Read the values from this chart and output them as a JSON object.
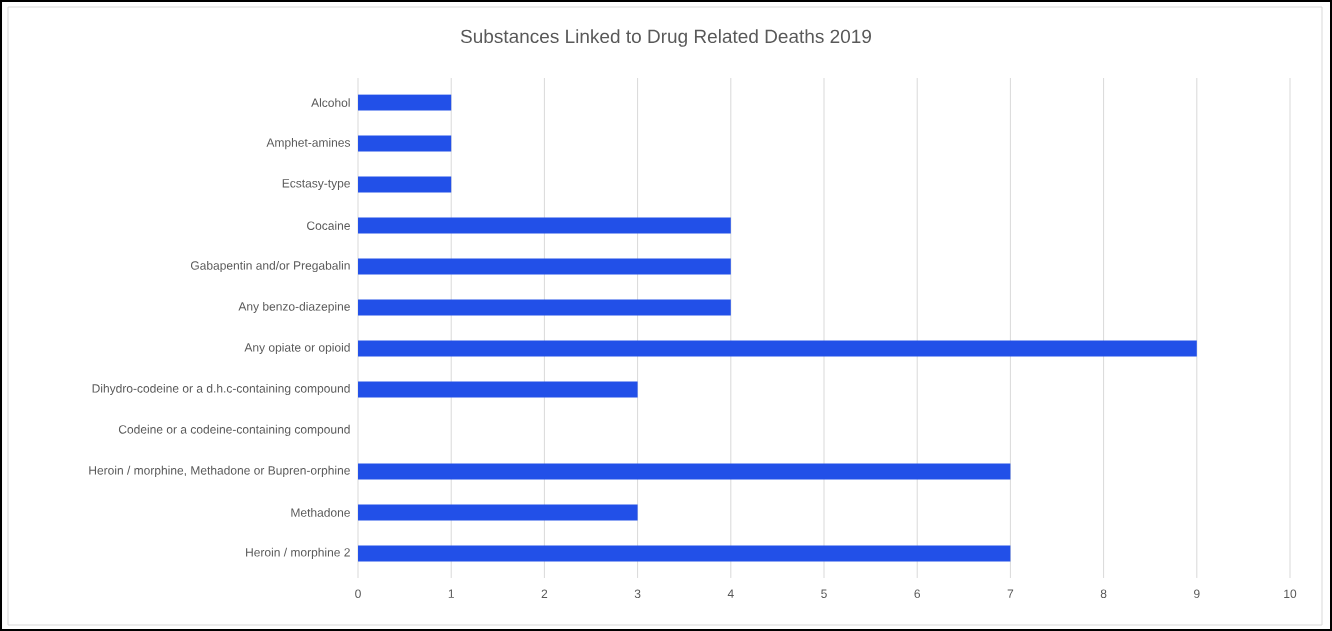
{
  "chart_data": {
    "type": "bar",
    "orientation": "horizontal",
    "title": "Substances Linked to Drug Related Deaths 2019",
    "categories": [
      "Alcohol",
      "Amphet-amines",
      "Ecstasy-type",
      "Cocaine",
      "Gabapentin and/or Pregabalin",
      "Any benzo-diazepine",
      "Any opiate or opioid",
      "Dihydro-codeine or a d.h.c-containing compound",
      "Codeine or a codeine-containing compound",
      "Heroin / morphine, Methadone or Bupren-orphine",
      "Methadone",
      "Heroin / morphine 2"
    ],
    "values": [
      1,
      1,
      1,
      4,
      4,
      4,
      9,
      3,
      0,
      7,
      3,
      7
    ],
    "color": "#2250e8",
    "xlim": [
      0,
      10
    ],
    "xticks": [
      0,
      1,
      2,
      3,
      4,
      5,
      6,
      7,
      8,
      9,
      10
    ],
    "grid": "x"
  }
}
